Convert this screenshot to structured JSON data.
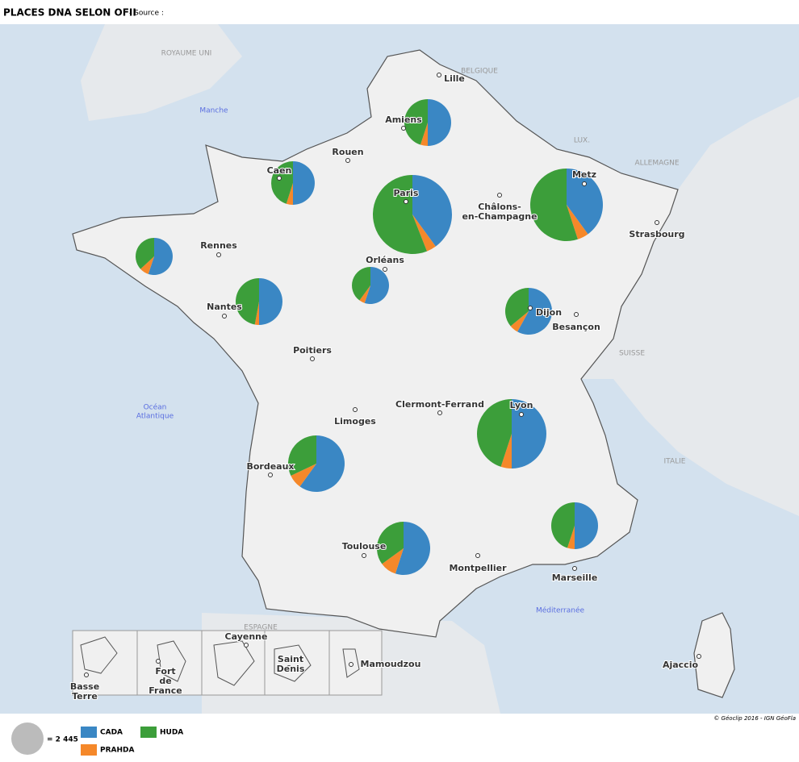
{
  "header": {
    "title": "PLACES DNA SELON OFII",
    "source": "- Source :"
  },
  "countries": [
    "ROYAUME UNI",
    "BELGIQUE",
    "LUX.",
    "ALLEMAGNE",
    "SUISSE",
    "ITALIE",
    "ESPAGNE"
  ],
  "seas": [
    [
      "Manche"
    ],
    [
      "Océan",
      "Atlantique"
    ],
    [
      "Méditerranée"
    ]
  ],
  "cities": [
    [
      "Lille"
    ],
    [
      "Amiens"
    ],
    [
      "Rouen"
    ],
    [
      "Caen"
    ],
    [
      "Paris"
    ],
    [
      "Metz"
    ],
    [
      "Châlons-",
      "en-Champagne"
    ],
    [
      "Strasbourg"
    ],
    [
      "Rennes"
    ],
    [
      "Orléans"
    ],
    [
      "Nantes"
    ],
    [
      "Dijon"
    ],
    [
      "Besançon"
    ],
    [
      "Poitiers"
    ],
    [
      "Limoges"
    ],
    [
      "Clermont-Ferrand"
    ],
    [
      "Lyon"
    ],
    [
      "Bordeaux"
    ],
    [
      "Toulouse"
    ],
    [
      "Montpellier"
    ],
    [
      "Marseille"
    ],
    [
      "Ajaccio"
    ],
    [
      "Basse",
      "Terre"
    ],
    [
      "Fort",
      "de",
      "France"
    ],
    [
      "Cayenne"
    ],
    [
      "Saint",
      "Denis"
    ],
    [
      "Mamoudzou"
    ]
  ],
  "series": [
    {
      "name": "CADA",
      "color": "#3a87c4"
    },
    {
      "name": "PRAHDA",
      "color": "#f5882a"
    },
    {
      "name": "HUDA",
      "color": "#3c9e3a"
    }
  ],
  "pies": [
    [
      2570,
      260,
      2310
    ],
    [
      2225,
      220,
      2005
    ],
    [
      5870,
      590,
      8220
    ],
    [
      4950,
      620,
      6810
    ],
    [
      1780,
      260,
      1190
    ],
    [
      2570,
      150,
      2420
    ],
    [
      1780,
      160,
      1290
    ],
    [
      2980,
      310,
      1850
    ],
    [
      5650,
      570,
      5080
    ],
    [
      4490,
      600,
      2400
    ],
    [
      3660,
      670,
      2330
    ],
    [
      2570,
      260,
      2310
    ]
  ],
  "legend": {
    "reference": {
      "value": 2445,
      "label": "= 2 445"
    }
  },
  "credit": "© Géoclip 2016 - IGN GéoFla"
}
